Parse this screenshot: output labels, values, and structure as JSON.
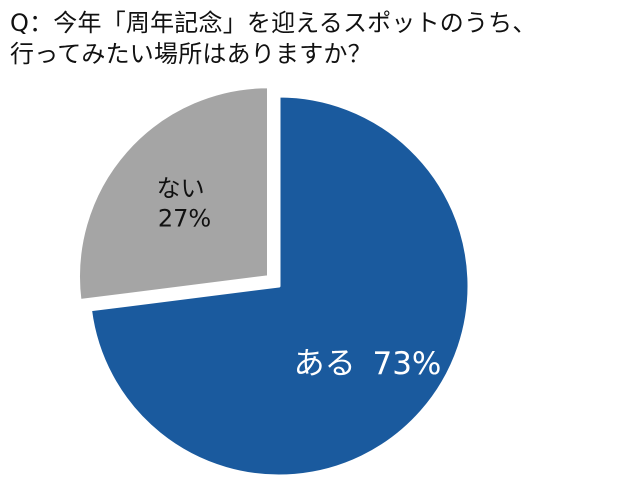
{
  "chart_data": {
    "type": "pie",
    "title": "Q：今年「周年記念」を迎えるスポットのうち、",
    "subtitle": "行ってみたい場所はありますか？",
    "slices": [
      {
        "label": "ある",
        "value": 73,
        "value_text": "73%",
        "color": "#1a5a9e"
      },
      {
        "label": "ない",
        "value": 27,
        "value_text": "27%",
        "color": "#a5a5a5"
      }
    ],
    "start_angle": "12 o'clock",
    "direction": "clockwise",
    "smaller_slice_exploded": true,
    "legend": "none"
  }
}
